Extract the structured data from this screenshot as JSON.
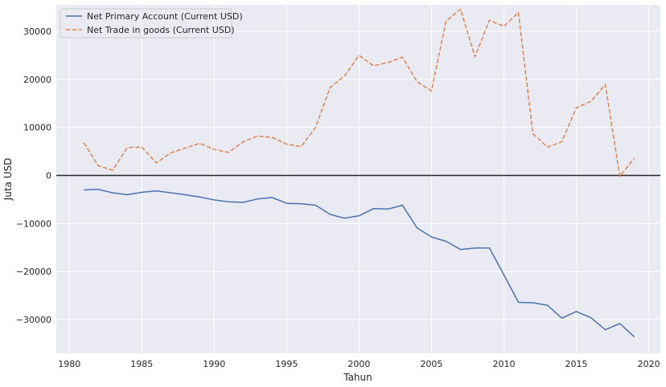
{
  "chart_data": {
    "type": "line",
    "title": "",
    "xlabel": "Tahun",
    "ylabel": "Juta USD",
    "xlim": [
      1979.1,
      2020.8
    ],
    "ylim": [
      -37000,
      35500
    ],
    "xticks": [
      1980,
      1985,
      1990,
      1995,
      2000,
      2005,
      2010,
      2015,
      2020
    ],
    "xtick_labels": [
      "1980",
      "1985",
      "1990",
      "1995",
      "2000",
      "2005",
      "2010",
      "2015",
      "2020"
    ],
    "yticks": [
      -30000,
      -20000,
      -10000,
      0,
      10000,
      20000,
      30000
    ],
    "ytick_labels": [
      "−30000",
      "−20000",
      "−10000",
      "0",
      "10000",
      "20000",
      "30000"
    ],
    "grid": true,
    "legend_position": "top-left",
    "reference_line": 0,
    "x": [
      1981,
      1982,
      1983,
      1984,
      1985,
      1986,
      1987,
      1988,
      1989,
      1990,
      1991,
      1992,
      1993,
      1994,
      1995,
      1996,
      1997,
      1998,
      1999,
      2000,
      2001,
      2002,
      2003,
      2004,
      2005,
      2006,
      2007,
      2008,
      2009,
      2010,
      2011,
      2012,
      2013,
      2014,
      2015,
      2016,
      2017,
      2018,
      2019
    ],
    "series": [
      {
        "name": "Net Primary Account (Current USD)",
        "color": "#4c72b0",
        "dash": "solid",
        "values": [
          -3000,
          -2900,
          -3600,
          -4000,
          -3500,
          -3200,
          -3600,
          -4000,
          -4500,
          -5100,
          -5500,
          -5600,
          -4900,
          -4600,
          -5800,
          -5900,
          -6200,
          -8100,
          -8900,
          -8400,
          -6900,
          -7000,
          -6200,
          -10900,
          -12800,
          -13700,
          -15400,
          -15100,
          -15100,
          -20700,
          -26400,
          -26500,
          -27000,
          -29700,
          -28300,
          -29600,
          -32100,
          -30800,
          -33600
        ]
      },
      {
        "name": "Net Trade in goods (Current USD)",
        "color": "#dd8452",
        "dash": "dashed",
        "values": [
          6800,
          2000,
          1100,
          5800,
          5900,
          2600,
          4700,
          5700,
          6700,
          5400,
          4800,
          7000,
          8200,
          7900,
          6500,
          6000,
          10000,
          18300,
          20700,
          25000,
          22800,
          23500,
          24600,
          19500,
          17600,
          32100,
          34600,
          24700,
          32300,
          31000,
          33900,
          8700,
          5900,
          7000,
          14100,
          15400,
          18900,
          -200,
          3600
        ]
      }
    ]
  }
}
